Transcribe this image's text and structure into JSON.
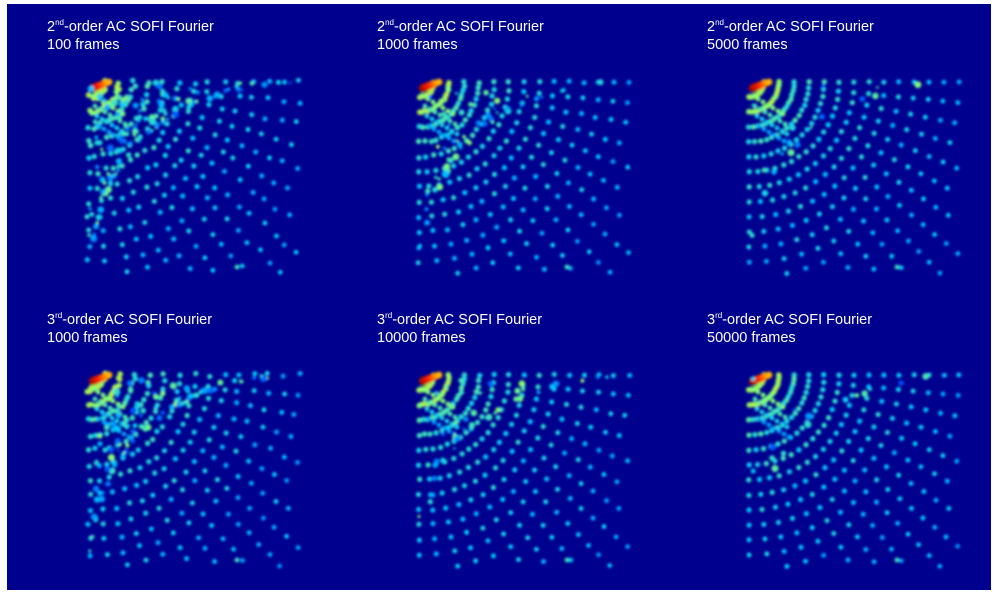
{
  "figure": {
    "background": "#00008f",
    "colormap": [
      "#00008f",
      "#0044ff",
      "#00c8ff",
      "#7dff7a",
      "#ffd800",
      "#ff2000",
      "#800000"
    ],
    "panels": [
      {
        "order_num": "2",
        "order_sup": "nd",
        "title_rest": "-order AC SOFI Fourier",
        "frames": "100 frames",
        "noise": 0.75
      },
      {
        "order_num": "2",
        "order_sup": "nd",
        "title_rest": "-order AC SOFI Fourier",
        "frames": "1000 frames",
        "noise": 0.3
      },
      {
        "order_num": "2",
        "order_sup": "nd",
        "title_rest": "-order AC SOFI Fourier",
        "frames": "5000 frames",
        "noise": 0.12
      },
      {
        "order_num": "3",
        "order_sup": "rd",
        "title_rest": "-order AC SOFI Fourier",
        "frames": "1000 frames",
        "noise": 0.6
      },
      {
        "order_num": "3",
        "order_sup": "rd",
        "title_rest": "-order AC SOFI Fourier",
        "frames": "10000 frames",
        "noise": 0.25
      },
      {
        "order_num": "3",
        "order_sup": "rd",
        "title_rest": "-order AC SOFI Fourier",
        "frames": "50000 frames",
        "noise": 0.1
      }
    ]
  }
}
